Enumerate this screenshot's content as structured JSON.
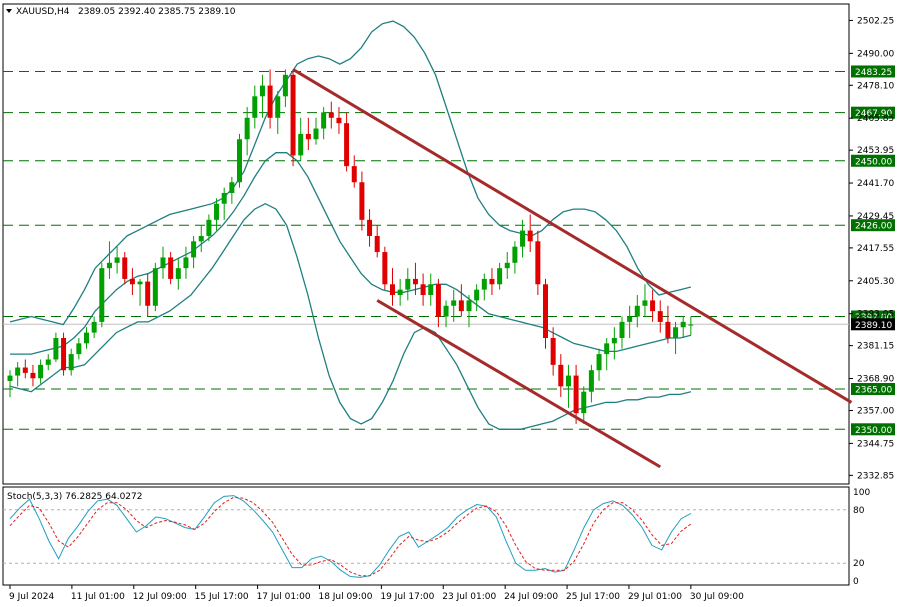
{
  "header": {
    "symbol_label": "XAUUSD,H4",
    "ohlc": "2389.05 2392.40 2385.75 2389.10"
  },
  "stoch": {
    "label": "Stoch(5,3,3) 76.2825 64.0272",
    "levels": [
      100,
      80,
      20,
      0
    ],
    "main": [
      70,
      82,
      92,
      70,
      45,
      25,
      48,
      62,
      78,
      90,
      92,
      85,
      70,
      55,
      62,
      72,
      70,
      65,
      60,
      58,
      72,
      88,
      95,
      96,
      90,
      80,
      68,
      55,
      35,
      15,
      15,
      25,
      28,
      22,
      12,
      5,
      4,
      6,
      18,
      35,
      50,
      55,
      38,
      45,
      52,
      60,
      72,
      80,
      86,
      84,
      72,
      45,
      20,
      12,
      12,
      14,
      10,
      12,
      35,
      60,
      80,
      87,
      90,
      85,
      74,
      60,
      40,
      35,
      55,
      70,
      76
    ],
    "signal": [
      62,
      74,
      85,
      82,
      65,
      45,
      38,
      50,
      65,
      80,
      88,
      88,
      80,
      68,
      60,
      65,
      68,
      66,
      63,
      58,
      65,
      78,
      88,
      94,
      93,
      88,
      78,
      66,
      48,
      30,
      18,
      18,
      22,
      24,
      18,
      10,
      6,
      6,
      12,
      25,
      40,
      50,
      46,
      44,
      48,
      55,
      65,
      74,
      82,
      84,
      78,
      62,
      40,
      22,
      14,
      12,
      12,
      12,
      22,
      42,
      65,
      80,
      88,
      88,
      80,
      68,
      52,
      40,
      42,
      56,
      64
    ]
  },
  "chart_data": {
    "type": "candlestick",
    "symbol": "XAUUSD",
    "timeframe": "H4",
    "ylim": [
      2330,
      2508
    ],
    "y_ticks": [
      2502.25,
      2490.0,
      2478.1,
      2465.85,
      2453.95,
      2441.7,
      2429.45,
      2417.55,
      2405.3,
      2393.05,
      2381.15,
      2368.9,
      2357.0,
      2344.75,
      2332.85
    ],
    "x_tick_labels": [
      "9 Jul 2024",
      "11 Jul 01:00",
      "12 Jul 09:00",
      "15 Jul 17:00",
      "17 Jul 01:00",
      "18 Jul 09:00",
      "19 Jul 17:00",
      "23 Jul 01:00",
      "24 Jul 09:00",
      "25 Jul 17:00",
      "29 Jul 01:00",
      "30 Jul 09:00"
    ],
    "x_tick_index": [
      0,
      10,
      20,
      30,
      40,
      50,
      60,
      70,
      80,
      90,
      100,
      110
    ],
    "horizontal_levels": [
      {
        "value": 2483.25,
        "label": "2483.25"
      },
      {
        "value": 2467.9,
        "label": "2467.90"
      },
      {
        "value": 2450.0,
        "label": "2450.00"
      },
      {
        "value": 2426.0,
        "label": "2426.00"
      },
      {
        "value": 2392.0,
        "label": "2392.00"
      },
      {
        "value": 2365.0,
        "label": "2365.00"
      },
      {
        "value": 2350.0,
        "label": "2350.00"
      }
    ],
    "current_price": {
      "value": 2389.1,
      "label": "2389.10"
    },
    "colors": {
      "bull": "#00a000",
      "bear": "#e00000",
      "bollinger": "#1f7f7f",
      "trendline": "#a52a2a",
      "levels": "#007000"
    },
    "candles": [
      [
        2368,
        2372,
        2362,
        2370
      ],
      [
        2370,
        2375,
        2366,
        2373
      ],
      [
        2373,
        2376,
        2369,
        2371
      ],
      [
        2371,
        2374,
        2366,
        2369
      ],
      [
        2369,
        2376,
        2367,
        2374
      ],
      [
        2374,
        2378,
        2372,
        2376
      ],
      [
        2376,
        2386,
        2375,
        2384
      ],
      [
        2384,
        2386,
        2370,
        2372
      ],
      [
        2372,
        2380,
        2370,
        2378
      ],
      [
        2378,
        2384,
        2376,
        2382
      ],
      [
        2382,
        2388,
        2380,
        2386
      ],
      [
        2386,
        2392,
        2384,
        2390
      ],
      [
        2390,
        2412,
        2388,
        2410
      ],
      [
        2410,
        2420,
        2406,
        2412
      ],
      [
        2412,
        2418,
        2408,
        2414
      ],
      [
        2414,
        2416,
        2404,
        2406
      ],
      [
        2406,
        2410,
        2400,
        2404
      ],
      [
        2404,
        2406,
        2396,
        2405
      ],
      [
        2405,
        2408,
        2392,
        2396
      ],
      [
        2396,
        2412,
        2394,
        2410
      ],
      [
        2410,
        2418,
        2406,
        2414
      ],
      [
        2414,
        2416,
        2404,
        2406
      ],
      [
        2406,
        2414,
        2402,
        2410
      ],
      [
        2410,
        2418,
        2406,
        2414
      ],
      [
        2414,
        2422,
        2410,
        2420
      ],
      [
        2420,
        2426,
        2416,
        2422
      ],
      [
        2422,
        2430,
        2420,
        2428
      ],
      [
        2428,
        2436,
        2424,
        2434
      ],
      [
        2434,
        2440,
        2428,
        2438
      ],
      [
        2438,
        2444,
        2434,
        2442
      ],
      [
        2442,
        2460,
        2440,
        2458
      ],
      [
        2458,
        2470,
        2452,
        2466
      ],
      [
        2466,
        2478,
        2462,
        2474
      ],
      [
        2474,
        2482,
        2466,
        2478
      ],
      [
        2478,
        2484,
        2462,
        2466
      ],
      [
        2466,
        2476,
        2460,
        2474
      ],
      [
        2474,
        2484,
        2470,
        2482
      ],
      [
        2482,
        2484,
        2448,
        2452
      ],
      [
        2452,
        2466,
        2450,
        2460
      ],
      [
        2460,
        2466,
        2454,
        2458
      ],
      [
        2458,
        2466,
        2456,
        2462
      ],
      [
        2462,
        2470,
        2458,
        2468
      ],
      [
        2468,
        2472,
        2462,
        2466
      ],
      [
        2466,
        2470,
        2460,
        2464
      ],
      [
        2464,
        2468,
        2446,
        2448
      ],
      [
        2448,
        2452,
        2440,
        2442
      ],
      [
        2442,
        2446,
        2424,
        2428
      ],
      [
        2428,
        2432,
        2418,
        2422
      ],
      [
        2422,
        2426,
        2414,
        2416
      ],
      [
        2416,
        2418,
        2402,
        2404
      ],
      [
        2404,
        2410,
        2396,
        2400
      ],
      [
        2400,
        2406,
        2396,
        2402
      ],
      [
        2402,
        2410,
        2398,
        2406
      ],
      [
        2406,
        2412,
        2400,
        2404
      ],
      [
        2404,
        2408,
        2396,
        2400
      ],
      [
        2400,
        2408,
        2396,
        2404
      ],
      [
        2404,
        2406,
        2388,
        2392
      ],
      [
        2392,
        2398,
        2388,
        2396
      ],
      [
        2396,
        2402,
        2390,
        2398
      ],
      [
        2398,
        2404,
        2392,
        2394
      ],
      [
        2394,
        2400,
        2388,
        2398
      ],
      [
        2398,
        2404,
        2394,
        2402
      ],
      [
        2402,
        2408,
        2398,
        2406
      ],
      [
        2406,
        2410,
        2400,
        2404
      ],
      [
        2404,
        2412,
        2402,
        2410
      ],
      [
        2410,
        2416,
        2406,
        2412
      ],
      [
        2412,
        2420,
        2408,
        2418
      ],
      [
        2418,
        2428,
        2414,
        2424
      ],
      [
        2424,
        2430,
        2416,
        2420
      ],
      [
        2420,
        2424,
        2400,
        2404
      ],
      [
        2404,
        2406,
        2380,
        2384
      ],
      [
        2384,
        2388,
        2370,
        2374
      ],
      [
        2374,
        2378,
        2362,
        2366
      ],
      [
        2366,
        2374,
        2358,
        2370
      ],
      [
        2370,
        2374,
        2352,
        2356
      ],
      [
        2356,
        2366,
        2352,
        2364
      ],
      [
        2364,
        2374,
        2360,
        2372
      ],
      [
        2372,
        2380,
        2368,
        2378
      ],
      [
        2378,
        2384,
        2372,
        2382
      ],
      [
        2382,
        2388,
        2376,
        2384
      ],
      [
        2384,
        2392,
        2380,
        2390
      ],
      [
        2390,
        2396,
        2384,
        2392
      ],
      [
        2392,
        2400,
        2388,
        2396
      ],
      [
        2396,
        2404,
        2392,
        2398
      ],
      [
        2398,
        2402,
        2390,
        2394
      ],
      [
        2394,
        2398,
        2386,
        2390
      ],
      [
        2390,
        2396,
        2382,
        2384
      ],
      [
        2384,
        2390,
        2378,
        2388
      ],
      [
        2388,
        2392,
        2384,
        2390
      ],
      [
        2389,
        2392,
        2385,
        2389
      ]
    ],
    "bollinger": {
      "upper": [
        2390,
        2391,
        2392,
        2391,
        2390,
        2389,
        2395,
        2402,
        2410,
        2414,
        2418,
        2422,
        2424,
        2426,
        2428,
        2430,
        2431,
        2432,
        2433,
        2434,
        2436,
        2440,
        2446,
        2456,
        2466,
        2474,
        2480,
        2486,
        2488,
        2489,
        2488,
        2486,
        2488,
        2492,
        2498,
        2501,
        2502,
        2500,
        2496,
        2490,
        2482,
        2470,
        2458,
        2446,
        2436,
        2430,
        2426,
        2424,
        2423,
        2422,
        2424,
        2428,
        2431,
        2432,
        2432,
        2431,
        2428,
        2424,
        2418,
        2410,
        2404,
        2400,
        2401,
        2402,
        2403
      ],
      "middle": [
        2378,
        2378,
        2378,
        2379,
        2380,
        2381,
        2384,
        2388,
        2394,
        2398,
        2402,
        2405,
        2407,
        2408,
        2410,
        2412,
        2414,
        2416,
        2419,
        2422,
        2426,
        2431,
        2437,
        2444,
        2450,
        2453,
        2453,
        2450,
        2444,
        2436,
        2428,
        2420,
        2414,
        2408,
        2404,
        2402,
        2401,
        2401,
        2402,
        2403,
        2404,
        2404,
        2402,
        2399,
        2396,
        2393,
        2392,
        2391,
        2390,
        2389,
        2388,
        2386,
        2384,
        2382,
        2381,
        2380,
        2379,
        2379,
        2380,
        2381,
        2382,
        2383,
        2384,
        2384,
        2385
      ],
      "lower": [
        2366,
        2365,
        2364,
        2367,
        2370,
        2373,
        2373,
        2374,
        2378,
        2382,
        2386,
        2388,
        2390,
        2390,
        2392,
        2394,
        2397,
        2400,
        2405,
        2410,
        2416,
        2422,
        2428,
        2432,
        2434,
        2432,
        2426,
        2414,
        2400,
        2384,
        2370,
        2360,
        2354,
        2352,
        2354,
        2360,
        2368,
        2378,
        2386,
        2388,
        2386,
        2380,
        2374,
        2366,
        2358,
        2352,
        2350,
        2350,
        2350,
        2351,
        2352,
        2353,
        2355,
        2357,
        2358,
        2359,
        2360,
        2360,
        2361,
        2361,
        2362,
        2362,
        2363,
        2363,
        2364
      ]
    },
    "trendlines": [
      {
        "from": [
          37,
          2484
        ],
        "to": [
          110,
          2360
        ]
      },
      {
        "from": [
          48,
          2398
        ],
        "to": [
          85,
          2336
        ]
      }
    ]
  }
}
